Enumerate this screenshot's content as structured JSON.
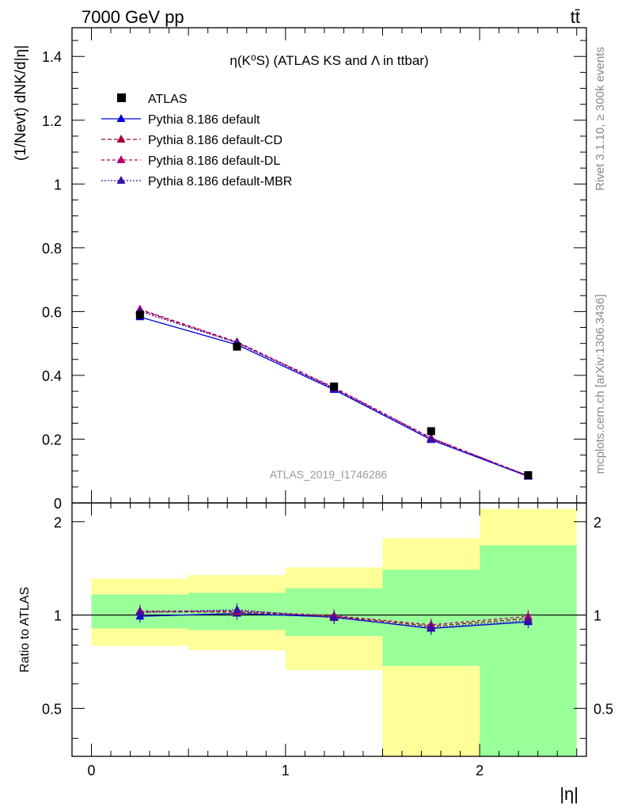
{
  "header": {
    "energy_label": "7000 GeV pp",
    "process_label": "tt̄"
  },
  "side_labels": {
    "rivet": "Rivet 3.1.10, ≥ 300k events",
    "source": "mcplots.cern.ch [arXiv:1306.3436]"
  },
  "watermark": "ATLAS_2019_I1746286",
  "colors": {
    "atlas": "#000000",
    "default": "#0000dd",
    "cd": "#a0003a",
    "dl": "#b0006a",
    "mbr": "#3a10aa",
    "band_inner": "#99ff99",
    "band_outer": "#ffff99"
  },
  "chart_data": [
    {
      "type": "line",
      "title": "η(K⁰S) (ATLAS KS and Λ in ttbar)",
      "ylabel": "(1/Nevt) dNK/d|η|",
      "xlabel": "|η|",
      "xlim": [
        -0.1,
        2.55
      ],
      "ylim": [
        0,
        1.49
      ],
      "yticks": [
        0.2,
        0.4,
        0.6,
        0.8,
        1,
        1.2,
        1.4
      ],
      "ytick_labels": [
        "0.2",
        "0.4",
        "0.6",
        "0.8",
        "1",
        "1.2",
        "1.4"
      ],
      "y_zero_label": "0",
      "x": [
        0.25,
        0.75,
        1.25,
        1.75,
        2.25
      ],
      "legend": [
        "ATLAS",
        "Pythia 8.186 default",
        "Pythia 8.186 default-CD",
        "Pythia 8.186 default-DL",
        "Pythia 8.186 default-MBR"
      ],
      "series": [
        {
          "name": "ATLAS",
          "key": "atlas",
          "values": [
            0.59,
            0.49,
            0.365,
            0.225,
            0.087
          ]
        },
        {
          "name": "Pythia 8.186 default",
          "key": "default",
          "values": [
            0.583,
            0.496,
            0.355,
            0.198,
            0.083
          ]
        },
        {
          "name": "Pythia 8.186 default-CD",
          "key": "cd",
          "values": [
            0.605,
            0.503,
            0.36,
            0.203,
            0.085
          ]
        },
        {
          "name": "Pythia 8.186 default-DL",
          "key": "dl",
          "values": [
            0.607,
            0.505,
            0.362,
            0.204,
            0.085
          ]
        },
        {
          "name": "Pythia 8.186 default-MBR",
          "key": "mbr",
          "values": [
            0.6,
            0.502,
            0.358,
            0.2,
            0.084
          ]
        }
      ]
    },
    {
      "type": "line",
      "ylabel": "Ratio to ATLAS",
      "xlabel": "|η|",
      "xlim": [
        -0.1,
        2.55
      ],
      "ylim": [
        0.35,
        2.3
      ],
      "yticks": [
        0.5,
        1,
        2
      ],
      "ytick_labels": [
        "0.5",
        "1",
        "2"
      ],
      "xticks": [
        0,
        1,
        2
      ],
      "xtick_labels": [
        "0",
        "1",
        "2"
      ],
      "x": [
        0.25,
        0.75,
        1.25,
        1.75,
        2.25
      ],
      "bins": [
        [
          0,
          0.5
        ],
        [
          0.5,
          1.0
        ],
        [
          1.0,
          1.5
        ],
        [
          1.5,
          2.0
        ],
        [
          2.0,
          2.5
        ]
      ],
      "band_inner": [
        [
          0.905,
          1.165
        ],
        [
          0.895,
          1.18
        ],
        [
          0.855,
          1.22
        ],
        [
          0.685,
          1.4
        ],
        [
          0.35,
          1.68
        ]
      ],
      "band_outer": [
        [
          0.795,
          1.31
        ],
        [
          0.77,
          1.345
        ],
        [
          0.665,
          1.425
        ],
        [
          0.35,
          1.77
        ],
        [
          0.35,
          2.2
        ]
      ],
      "series": [
        {
          "name": "Pythia 8.186 default",
          "key": "default",
          "values": [
            0.99,
            1.012,
            0.985,
            0.905,
            0.95
          ]
        },
        {
          "name": "Pythia 8.186 default-CD",
          "key": "cd",
          "values": [
            1.025,
            1.022,
            0.99,
            0.92,
            0.975
          ]
        },
        {
          "name": "Pythia 8.186 default-DL",
          "key": "dl",
          "values": [
            1.03,
            1.03,
            0.995,
            0.93,
            0.99
          ]
        },
        {
          "name": "Pythia 8.186 default-MBR",
          "key": "mbr",
          "values": [
            1.018,
            1.04,
            0.98,
            0.91,
            0.96
          ]
        }
      ]
    }
  ]
}
